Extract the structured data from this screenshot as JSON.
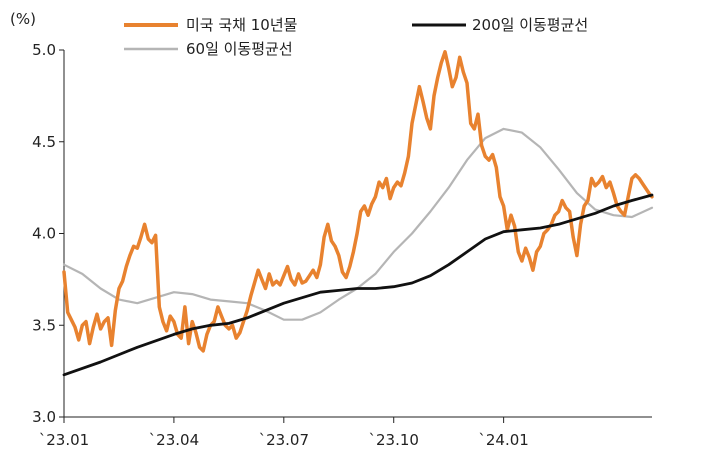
{
  "chart_data": {
    "type": "line",
    "unit_label": "(%)",
    "ylim": [
      3.0,
      5.0
    ],
    "y_ticks": [
      "3.0",
      "3.5",
      "4.0",
      "4.5",
      "5.0"
    ],
    "x_ticks": [
      "`23.01",
      "`23.04",
      "`23.07",
      "`23.10",
      "`24.01"
    ],
    "grid": false,
    "legend_position": "top",
    "series": [
      {
        "name": "미국 국채 10년물",
        "color": "#E8822F",
        "points": [
          [
            0,
            3.79
          ],
          [
            2,
            3.57
          ],
          [
            4,
            3.53
          ],
          [
            6,
            3.49
          ],
          [
            8,
            3.42
          ],
          [
            10,
            3.5
          ],
          [
            12,
            3.52
          ],
          [
            14,
            3.4
          ],
          [
            16,
            3.49
          ],
          [
            18,
            3.56
          ],
          [
            20,
            3.48
          ],
          [
            22,
            3.52
          ],
          [
            24,
            3.54
          ],
          [
            26,
            3.39
          ],
          [
            28,
            3.58
          ],
          [
            30,
            3.7
          ],
          [
            32,
            3.74
          ],
          [
            34,
            3.82
          ],
          [
            36,
            3.88
          ],
          [
            38,
            3.93
          ],
          [
            40,
            3.92
          ],
          [
            42,
            3.98
          ],
          [
            44,
            4.05
          ],
          [
            46,
            3.97
          ],
          [
            48,
            3.95
          ],
          [
            50,
            3.99
          ],
          [
            52,
            3.6
          ],
          [
            54,
            3.52
          ],
          [
            56,
            3.47
          ],
          [
            58,
            3.55
          ],
          [
            60,
            3.52
          ],
          [
            62,
            3.45
          ],
          [
            64,
            3.43
          ],
          [
            66,
            3.6
          ],
          [
            68,
            3.4
          ],
          [
            70,
            3.52
          ],
          [
            72,
            3.46
          ],
          [
            74,
            3.38
          ],
          [
            76,
            3.36
          ],
          [
            78,
            3.45
          ],
          [
            80,
            3.5
          ],
          [
            82,
            3.52
          ],
          [
            84,
            3.6
          ],
          [
            86,
            3.55
          ],
          [
            88,
            3.5
          ],
          [
            90,
            3.48
          ],
          [
            92,
            3.5
          ],
          [
            94,
            3.43
          ],
          [
            96,
            3.46
          ],
          [
            98,
            3.52
          ],
          [
            100,
            3.58
          ],
          [
            102,
            3.66
          ],
          [
            104,
            3.73
          ],
          [
            106,
            3.8
          ],
          [
            108,
            3.75
          ],
          [
            110,
            3.7
          ],
          [
            112,
            3.78
          ],
          [
            114,
            3.72
          ],
          [
            116,
            3.74
          ],
          [
            118,
            3.72
          ],
          [
            120,
            3.77
          ],
          [
            122,
            3.82
          ],
          [
            124,
            3.75
          ],
          [
            126,
            3.72
          ],
          [
            128,
            3.78
          ],
          [
            130,
            3.73
          ],
          [
            132,
            3.74
          ],
          [
            134,
            3.77
          ],
          [
            136,
            3.8
          ],
          [
            138,
            3.76
          ],
          [
            140,
            3.83
          ],
          [
            142,
            3.98
          ],
          [
            144,
            4.05
          ],
          [
            146,
            3.96
          ],
          [
            148,
            3.93
          ],
          [
            150,
            3.88
          ],
          [
            152,
            3.79
          ],
          [
            154,
            3.76
          ],
          [
            156,
            3.82
          ],
          [
            158,
            3.9
          ],
          [
            160,
            4.0
          ],
          [
            162,
            4.12
          ],
          [
            164,
            4.15
          ],
          [
            166,
            4.1
          ],
          [
            168,
            4.16
          ],
          [
            170,
            4.2
          ],
          [
            172,
            4.28
          ],
          [
            174,
            4.25
          ],
          [
            176,
            4.3
          ],
          [
            178,
            4.19
          ],
          [
            180,
            4.25
          ],
          [
            182,
            4.28
          ],
          [
            184,
            4.26
          ],
          [
            186,
            4.33
          ],
          [
            188,
            4.42
          ],
          [
            190,
            4.6
          ],
          [
            192,
            4.7
          ],
          [
            194,
            4.8
          ],
          [
            196,
            4.72
          ],
          [
            198,
            4.63
          ],
          [
            200,
            4.57
          ],
          [
            202,
            4.75
          ],
          [
            204,
            4.85
          ],
          [
            206,
            4.93
          ],
          [
            208,
            4.99
          ],
          [
            210,
            4.9
          ],
          [
            212,
            4.8
          ],
          [
            214,
            4.85
          ],
          [
            216,
            4.96
          ],
          [
            218,
            4.88
          ],
          [
            220,
            4.82
          ],
          [
            222,
            4.6
          ],
          [
            224,
            4.57
          ],
          [
            226,
            4.65
          ],
          [
            228,
            4.48
          ],
          [
            230,
            4.42
          ],
          [
            232,
            4.4
          ],
          [
            234,
            4.43
          ],
          [
            236,
            4.36
          ],
          [
            238,
            4.2
          ],
          [
            240,
            4.15
          ],
          [
            242,
            4.02
          ],
          [
            244,
            4.1
          ],
          [
            246,
            4.04
          ],
          [
            248,
            3.9
          ],
          [
            250,
            3.85
          ],
          [
            252,
            3.92
          ],
          [
            254,
            3.87
          ],
          [
            256,
            3.8
          ],
          [
            258,
            3.9
          ],
          [
            260,
            3.93
          ],
          [
            262,
            4.0
          ],
          [
            264,
            4.02
          ],
          [
            266,
            4.05
          ],
          [
            268,
            4.1
          ],
          [
            270,
            4.12
          ],
          [
            272,
            4.18
          ],
          [
            274,
            4.14
          ],
          [
            276,
            4.12
          ],
          [
            278,
            3.98
          ],
          [
            280,
            3.88
          ],
          [
            282,
            4.05
          ],
          [
            284,
            4.15
          ],
          [
            286,
            4.18
          ],
          [
            288,
            4.3
          ],
          [
            290,
            4.26
          ],
          [
            292,
            4.28
          ],
          [
            294,
            4.31
          ],
          [
            296,
            4.25
          ],
          [
            298,
            4.28
          ],
          [
            300,
            4.22
          ],
          [
            302,
            4.15
          ],
          [
            304,
            4.12
          ],
          [
            306,
            4.1
          ],
          [
            308,
            4.2
          ],
          [
            310,
            4.3
          ],
          [
            312,
            4.32
          ],
          [
            314,
            4.3
          ],
          [
            316,
            4.27
          ],
          [
            318,
            4.24
          ],
          [
            320,
            4.21
          ],
          [
            321,
            4.2
          ]
        ]
      },
      {
        "name": "200일 이동평균선",
        "color": "#111111",
        "points": [
          [
            0,
            3.23
          ],
          [
            20,
            3.3
          ],
          [
            40,
            3.38
          ],
          [
            60,
            3.45
          ],
          [
            70,
            3.48
          ],
          [
            80,
            3.5
          ],
          [
            90,
            3.51
          ],
          [
            100,
            3.54
          ],
          [
            110,
            3.58
          ],
          [
            120,
            3.62
          ],
          [
            130,
            3.65
          ],
          [
            140,
            3.68
          ],
          [
            150,
            3.69
          ],
          [
            160,
            3.7
          ],
          [
            170,
            3.7
          ],
          [
            180,
            3.71
          ],
          [
            190,
            3.73
          ],
          [
            200,
            3.77
          ],
          [
            210,
            3.83
          ],
          [
            220,
            3.9
          ],
          [
            230,
            3.97
          ],
          [
            240,
            4.01
          ],
          [
            250,
            4.02
          ],
          [
            260,
            4.03
          ],
          [
            270,
            4.05
          ],
          [
            280,
            4.08
          ],
          [
            290,
            4.11
          ],
          [
            300,
            4.15
          ],
          [
            310,
            4.18
          ],
          [
            321,
            4.21
          ]
        ]
      },
      {
        "name": "60일 이동평균선",
        "color": "#B5B5B5",
        "points": [
          [
            0,
            3.83
          ],
          [
            10,
            3.78
          ],
          [
            20,
            3.7
          ],
          [
            30,
            3.64
          ],
          [
            40,
            3.62
          ],
          [
            50,
            3.65
          ],
          [
            60,
            3.68
          ],
          [
            70,
            3.67
          ],
          [
            80,
            3.64
          ],
          [
            90,
            3.63
          ],
          [
            100,
            3.62
          ],
          [
            110,
            3.58
          ],
          [
            120,
            3.53
          ],
          [
            130,
            3.53
          ],
          [
            140,
            3.57
          ],
          [
            150,
            3.64
          ],
          [
            160,
            3.7
          ],
          [
            170,
            3.78
          ],
          [
            180,
            3.9
          ],
          [
            190,
            4.0
          ],
          [
            200,
            4.12
          ],
          [
            210,
            4.25
          ],
          [
            220,
            4.4
          ],
          [
            230,
            4.52
          ],
          [
            240,
            4.57
          ],
          [
            250,
            4.55
          ],
          [
            260,
            4.47
          ],
          [
            270,
            4.35
          ],
          [
            280,
            4.22
          ],
          [
            290,
            4.13
          ],
          [
            300,
            4.1
          ],
          [
            310,
            4.09
          ],
          [
            321,
            4.14
          ]
        ]
      }
    ]
  }
}
